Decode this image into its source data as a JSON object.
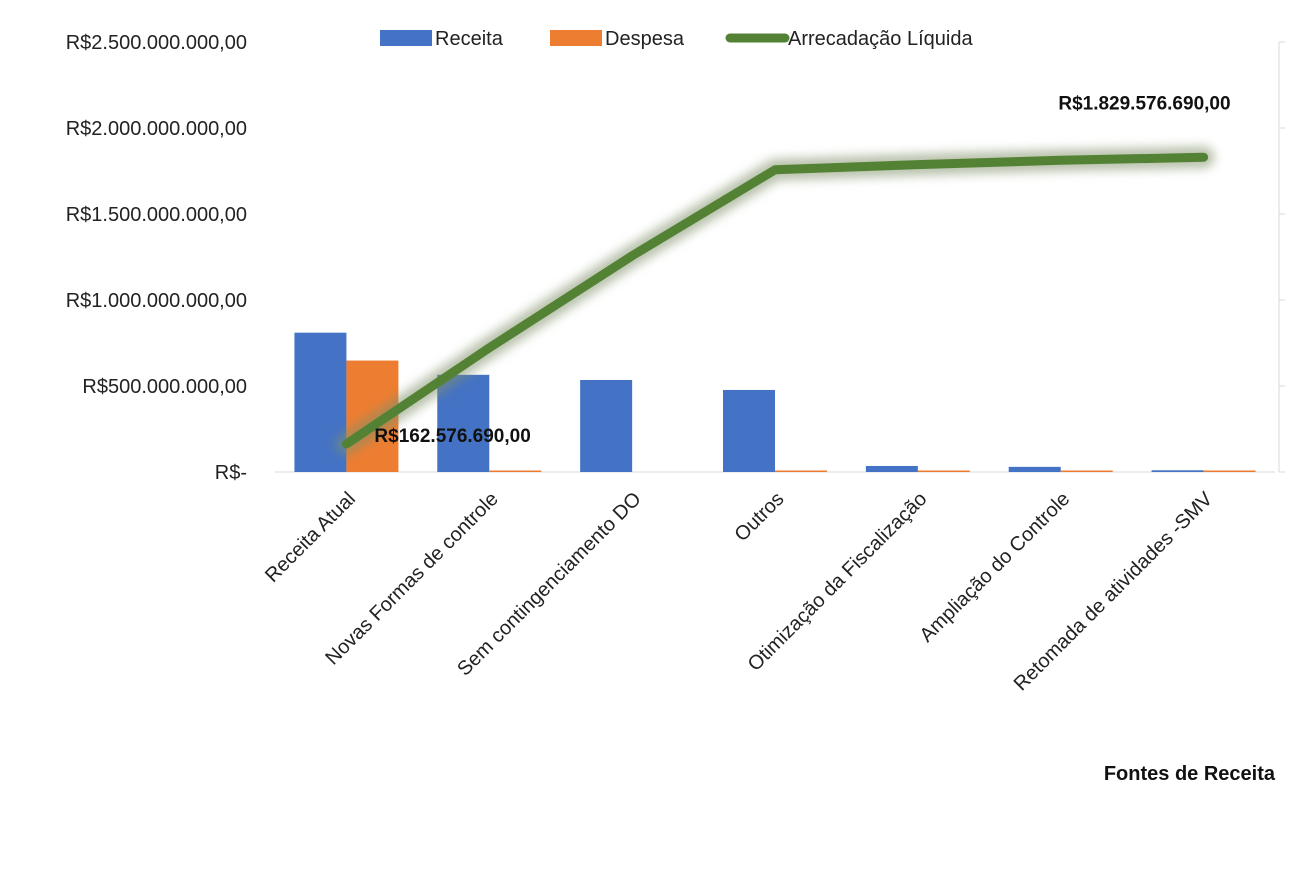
{
  "chart_data": {
    "type": "bar",
    "categories": [
      "Receita Atual",
      "Novas Formas de controle",
      "Sem contingenciamento DO",
      "Outros",
      "Otimização da Fiscalização",
      "Ampliação do Controle",
      "Retomada de atividades -SMV"
    ],
    "series": [
      {
        "name": "Receita",
        "type": "bar",
        "color": "#4472C4",
        "values": [
          810000000,
          565000000,
          535000000,
          477000000,
          35000000,
          30000000,
          10000000
        ]
      },
      {
        "name": "Despesa",
        "type": "bar",
        "color": "#ED7D31",
        "values": [
          648000000,
          5000000,
          0,
          5000000,
          5000000,
          5000000,
          5000000
        ]
      },
      {
        "name": "Arrecadação Líquida",
        "type": "line",
        "color": "#548235",
        "values": [
          162576690,
          722000000,
          1257000000,
          1757000000,
          1787000000,
          1812000000,
          1829576690
        ]
      }
    ],
    "y_ticks": [
      {
        "value": 0,
        "label": "R$-"
      },
      {
        "value": 500000000,
        "label": "R$500.000.000,00"
      },
      {
        "value": 1000000000,
        "label": "R$1.000.000.000,00"
      },
      {
        "value": 1500000000,
        "label": "R$1.500.000.000,00"
      },
      {
        "value": 2000000000,
        "label": "R$2.000.000.000,00"
      },
      {
        "value": 2500000000,
        "label": "R$2.500.000.000,00"
      }
    ],
    "ylim": [
      0,
      2500000000
    ],
    "data_labels": [
      {
        "series": "Arrecadação Líquida",
        "index": 0,
        "text": "R$162.576.690,00"
      },
      {
        "series": "Arrecadação Líquida",
        "index": 6,
        "text": "R$1.829.576.690,00"
      }
    ],
    "xlabel": "Fontes de Receita",
    "ylabel": "",
    "title": "",
    "legend_position": "top",
    "grid": false
  }
}
